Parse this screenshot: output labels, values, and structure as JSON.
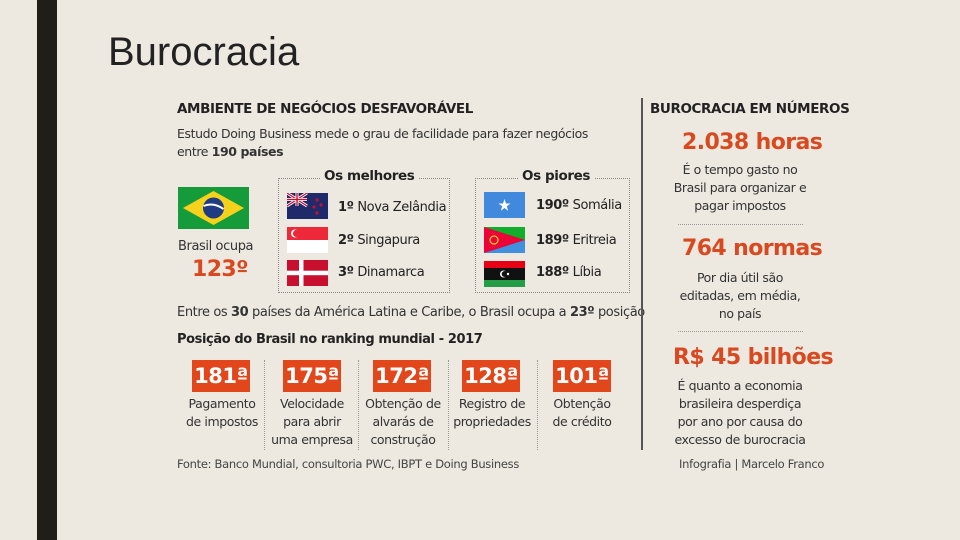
{
  "slide": {
    "title": "Burocracia"
  },
  "left": {
    "heading": "AMBIENTE DE NEGÓCIOS DESFAVORÁVEL",
    "intro_1": "Estudo Doing Business mede o grau de facilidade para fazer negócios",
    "intro_2_prefix": "entre ",
    "intro_2_bold": "190 países",
    "brasil_label": "Brasil ocupa",
    "brasil_rank": "123º",
    "best_title": "Os melhores",
    "best": [
      {
        "rank": "1º",
        "name": "Nova Zelândia",
        "flag": "new-zealand-flag"
      },
      {
        "rank": "2º",
        "name": "Singapura",
        "flag": "singapore-flag"
      },
      {
        "rank": "3º",
        "name": "Dinamarca",
        "flag": "denmark-flag"
      }
    ],
    "worst_title": "Os piores",
    "worst": [
      {
        "rank": "190º",
        "name": "Somália",
        "flag": "somalia-flag"
      },
      {
        "rank": "189º",
        "name": "Eritreia",
        "flag": "eritrea-flag"
      },
      {
        "rank": "188º",
        "name": "Líbia",
        "flag": "libya-flag"
      }
    ],
    "latam_1": "Entre os ",
    "latam_2": "30",
    "latam_3": " países da América Latina e Caribe, o Brasil ocupa a ",
    "latam_4": "23º",
    "latam_5": " posição",
    "ranking_heading": "Posição do Brasil no ranking mundial - 2017",
    "positions": [
      {
        "rank": "181ª",
        "label": [
          "Pagamento",
          "de impostos"
        ]
      },
      {
        "rank": "175ª",
        "label": [
          "Velocidade",
          "para abrir",
          "uma empresa"
        ]
      },
      {
        "rank": "172ª",
        "label": [
          "Obtenção de",
          "alvarás de",
          "construção"
        ]
      },
      {
        "rank": "128ª",
        "label": [
          "Registro de",
          "propriedades"
        ]
      },
      {
        "rank": "101ª",
        "label": [
          "Obtenção",
          "de crédito"
        ]
      }
    ],
    "source": "Fonte: Banco Mundial, consultoria PWC, IBPT e Doing Business"
  },
  "right": {
    "heading": "BUROCRACIA EM NÚMEROS",
    "stat1_value": "2.038 horas",
    "stat1_text": [
      "É o tempo gasto no",
      "Brasil para organizar e",
      "pagar impostos"
    ],
    "stat2_value": "764 normas",
    "stat2_text": [
      "Por dia útil são",
      "editadas, em média,",
      "no país"
    ],
    "stat3_value": "R$ 45 bilhões",
    "stat3_text": [
      "É quanto a economia",
      "brasileira desperdiça",
      "por ano por causa do",
      "excesso de burocracia"
    ],
    "credit": "Infografia | Marcelo Franco"
  },
  "colors": {
    "accent_red": "#e2471c",
    "background": "#ede9e1",
    "left_bar": "#1f1f17"
  }
}
